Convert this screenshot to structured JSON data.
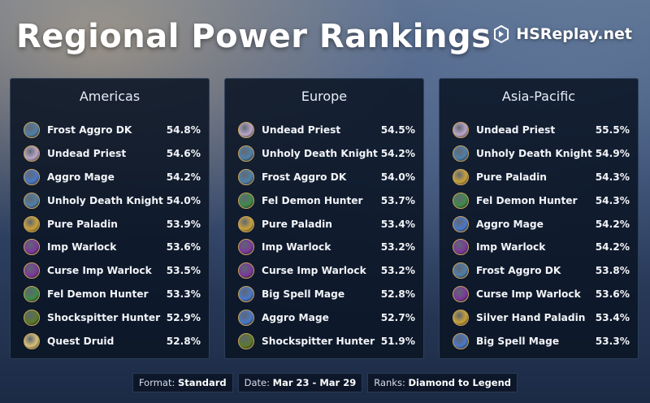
{
  "header": {
    "title": "Regional Power Rankings",
    "brand": "HSReplay.net"
  },
  "class_colors": {
    "DK": "#4f7fa8",
    "Priest": "#b9a6c9",
    "Mage": "#4a78c8",
    "Paladin": "#c9a23a",
    "Warlock": "#7a3a9a",
    "Demon Hunter": "#3f8a4a",
    "Hunter": "#5b7a2c",
    "Druid": "#d7c27a"
  },
  "regions": [
    {
      "name": "Americas",
      "decks": [
        {
          "name": "Frost Aggro DK",
          "winrate": "54.8%",
          "class": "DK"
        },
        {
          "name": "Undead Priest",
          "winrate": "54.6%",
          "class": "Priest"
        },
        {
          "name": "Aggro Mage",
          "winrate": "54.2%",
          "class": "Mage"
        },
        {
          "name": "Unholy Death Knight",
          "winrate": "54.0%",
          "class": "DK"
        },
        {
          "name": "Pure Paladin",
          "winrate": "53.9%",
          "class": "Paladin"
        },
        {
          "name": "Imp Warlock",
          "winrate": "53.6%",
          "class": "Warlock"
        },
        {
          "name": "Curse Imp Warlock",
          "winrate": "53.5%",
          "class": "Warlock"
        },
        {
          "name": "Fel Demon Hunter",
          "winrate": "53.3%",
          "class": "Demon Hunter"
        },
        {
          "name": "Shockspitter Hunter",
          "winrate": "52.9%",
          "class": "Hunter"
        },
        {
          "name": "Quest Druid",
          "winrate": "52.8%",
          "class": "Druid"
        }
      ]
    },
    {
      "name": "Europe",
      "decks": [
        {
          "name": "Undead Priest",
          "winrate": "54.5%",
          "class": "Priest"
        },
        {
          "name": "Unholy Death Knight",
          "winrate": "54.2%",
          "class": "DK"
        },
        {
          "name": "Frost Aggro DK",
          "winrate": "54.0%",
          "class": "DK"
        },
        {
          "name": "Fel Demon Hunter",
          "winrate": "53.7%",
          "class": "Demon Hunter"
        },
        {
          "name": "Pure Paladin",
          "winrate": "53.4%",
          "class": "Paladin"
        },
        {
          "name": "Imp Warlock",
          "winrate": "53.2%",
          "class": "Warlock"
        },
        {
          "name": "Curse Imp Warlock",
          "winrate": "53.2%",
          "class": "Warlock"
        },
        {
          "name": "Big Spell Mage",
          "winrate": "52.8%",
          "class": "Mage"
        },
        {
          "name": "Aggro Mage",
          "winrate": "52.7%",
          "class": "Mage"
        },
        {
          "name": "Shockspitter Hunter",
          "winrate": "51.9%",
          "class": "Hunter"
        }
      ]
    },
    {
      "name": "Asia-Pacific",
      "decks": [
        {
          "name": "Undead Priest",
          "winrate": "55.5%",
          "class": "Priest"
        },
        {
          "name": "Unholy Death Knight",
          "winrate": "54.9%",
          "class": "DK"
        },
        {
          "name": "Pure Paladin",
          "winrate": "54.3%",
          "class": "Paladin"
        },
        {
          "name": "Fel Demon Hunter",
          "winrate": "54.3%",
          "class": "Demon Hunter"
        },
        {
          "name": "Aggro Mage",
          "winrate": "54.2%",
          "class": "Mage"
        },
        {
          "name": "Imp Warlock",
          "winrate": "54.2%",
          "class": "Warlock"
        },
        {
          "name": "Frost Aggro DK",
          "winrate": "53.8%",
          "class": "DK"
        },
        {
          "name": "Curse Imp Warlock",
          "winrate": "53.6%",
          "class": "Warlock"
        },
        {
          "name": "Silver Hand Paladin",
          "winrate": "53.4%",
          "class": "Paladin"
        },
        {
          "name": "Big Spell Mage",
          "winrate": "53.3%",
          "class": "Mage"
        }
      ]
    }
  ],
  "footer": {
    "format_label": "Format:",
    "format_value": "Standard",
    "date_label": "Date:",
    "date_value": "Mar 23 - Mar 29",
    "ranks_label": "Ranks:",
    "ranks_value": "Diamond to Legend"
  }
}
